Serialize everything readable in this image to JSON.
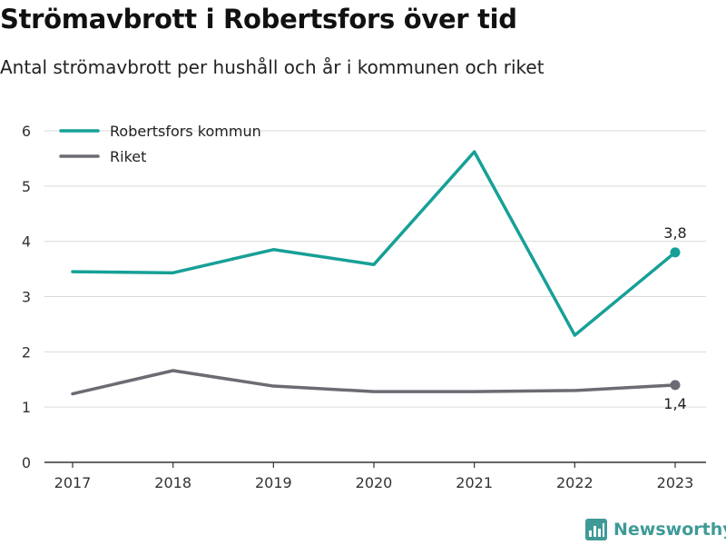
{
  "header": {
    "title": "Strömavbrott i Robertsfors över tid",
    "subtitle": "Antal strömavbrott per hushåll och år i kommunen och riket"
  },
  "branding": {
    "logo_text": "Newsworthy"
  },
  "chart_data": {
    "type": "line",
    "x": [
      "2017",
      "2018",
      "2019",
      "2020",
      "2021",
      "2022",
      "2023"
    ],
    "ylim": [
      0,
      6
    ],
    "yticks": [
      "0",
      "1",
      "2",
      "3",
      "4",
      "5",
      "6"
    ],
    "grid": true,
    "legend_position": "top-left",
    "series": [
      {
        "name": "Robertsfors kommun",
        "color": "#16a097",
        "values": [
          3.45,
          3.43,
          3.85,
          3.58,
          5.62,
          2.3,
          3.8
        ],
        "end_label": "3,8"
      },
      {
        "name": "Riket",
        "color": "#6b6b73",
        "values": [
          1.24,
          1.66,
          1.38,
          1.28,
          1.28,
          1.3,
          1.4
        ],
        "end_label": "1,4"
      }
    ]
  }
}
